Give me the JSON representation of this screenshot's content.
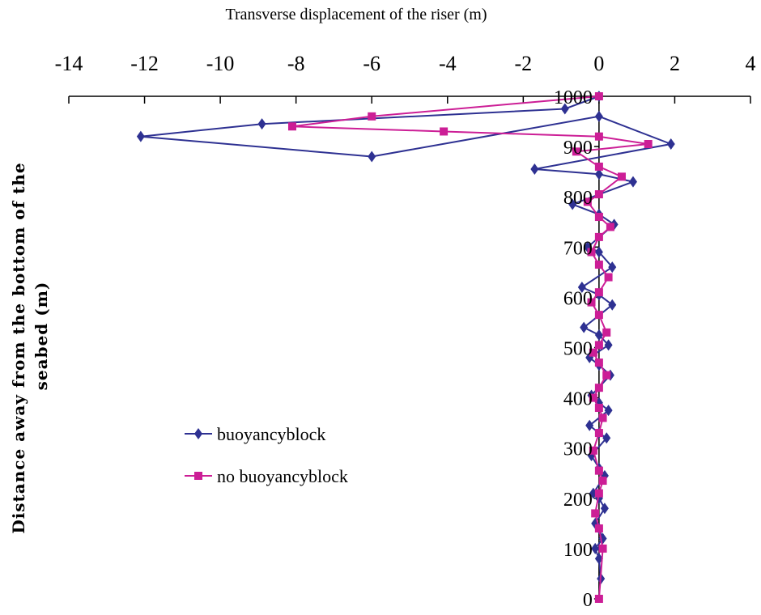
{
  "chart_data": {
    "type": "line",
    "xlabel": "Transverse displacement of the riser (m)",
    "ylabel_line1": "Distance   away  from  the  bottom  of    the",
    "ylabel_line2": "seabed (m)",
    "xlim": [
      -14,
      4
    ],
    "ylim": [
      0,
      1000
    ],
    "xticks": [
      -14,
      -12,
      -10,
      -8,
      -6,
      -4,
      -2,
      0,
      2,
      4
    ],
    "yticks": [
      0,
      100,
      200,
      300,
      400,
      500,
      600,
      700,
      800,
      900,
      1000
    ],
    "legend_position": "center-left",
    "series": [
      {
        "name": "buoyancyblock",
        "color": "#2E3192",
        "marker": "diamond",
        "x": [
          0,
          -0.9,
          -8.9,
          -12.1,
          -6,
          0,
          1.9,
          -1.7,
          0,
          0.9,
          -0.7,
          0,
          0.4,
          -0.3,
          0,
          0.35,
          -0.45,
          0,
          0.35,
          -0.4,
          0,
          0.25,
          -0.25,
          0,
          0.3,
          -0.2,
          0,
          0.25,
          -0.25,
          0,
          0.2,
          -0.2,
          0,
          0.15,
          -0.15,
          0,
          0.15,
          -0.1,
          0,
          0.1,
          -0.1,
          0,
          0.05
        ],
        "y": [
          1000,
          975,
          945,
          920,
          880,
          960,
          905,
          855,
          845,
          830,
          785,
          765,
          745,
          700,
          690,
          660,
          620,
          605,
          585,
          540,
          525,
          505,
          480,
          465,
          445,
          405,
          390,
          375,
          345,
          330,
          320,
          285,
          260,
          245,
          210,
          200,
          180,
          150,
          140,
          120,
          100,
          80,
          40
        ]
      },
      {
        "name": "no buoyancyblock",
        "color": "#CC1E96",
        "marker": "square",
        "x": [
          0,
          -6,
          -8.1,
          -4.1,
          0,
          1.3,
          -0.6,
          0,
          0.6,
          0,
          -0.3,
          0,
          0.3,
          0,
          -0.2,
          0,
          0.25,
          0,
          -0.2,
          0,
          0.2,
          0,
          -0.15,
          0,
          0.2,
          0,
          -0.15,
          0,
          0.1,
          0,
          -0.15,
          0,
          0.1,
          0,
          -0.1,
          0,
          0.1,
          0
        ],
        "y": [
          1000,
          960,
          940,
          930,
          920,
          905,
          890,
          860,
          840,
          805,
          790,
          760,
          740,
          720,
          690,
          665,
          640,
          610,
          590,
          565,
          530,
          505,
          490,
          470,
          445,
          420,
          400,
          380,
          360,
          330,
          295,
          255,
          235,
          210,
          170,
          140,
          100,
          0
        ]
      }
    ]
  }
}
